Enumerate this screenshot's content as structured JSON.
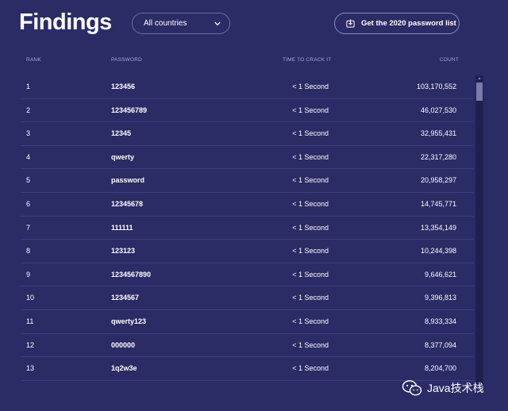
{
  "page": {
    "title": "Findings",
    "country_select": {
      "value": "All countries"
    },
    "download_button": {
      "label": "Get the 2020 password list"
    }
  },
  "table": {
    "headers": {
      "rank": "RANK",
      "password": "PASSWORD",
      "time": "TIME TO CRACK IT",
      "count": "COUNT"
    },
    "rows": [
      {
        "rank": "1",
        "password": "123456",
        "time": "< 1 Second",
        "count": "103,170,552"
      },
      {
        "rank": "2",
        "password": "123456789",
        "time": "< 1 Second",
        "count": "46,027,530"
      },
      {
        "rank": "3",
        "password": "12345",
        "time": "< 1 Second",
        "count": "32,955,431"
      },
      {
        "rank": "4",
        "password": "qwerty",
        "time": "< 1 Second",
        "count": "22,317,280"
      },
      {
        "rank": "5",
        "password": "password",
        "time": "< 1 Second",
        "count": "20,958,297"
      },
      {
        "rank": "6",
        "password": "12345678",
        "time": "< 1 Second",
        "count": "14,745,771"
      },
      {
        "rank": "7",
        "password": "111111",
        "time": "< 1 Second",
        "count": "13,354,149"
      },
      {
        "rank": "8",
        "password": "123123",
        "time": "< 1 Second",
        "count": "10,244,398"
      },
      {
        "rank": "9",
        "password": "1234567890",
        "time": "< 1 Second",
        "count": "9,646,621"
      },
      {
        "rank": "10",
        "password": "1234567",
        "time": "< 1 Second",
        "count": "9,396,813"
      },
      {
        "rank": "11",
        "password": "qwerty123",
        "time": "< 1 Second",
        "count": "8,933,334"
      },
      {
        "rank": "12",
        "password": "000000",
        "time": "< 1 Second",
        "count": "8,377,094"
      },
      {
        "rank": "13",
        "password": "1q2w3e",
        "time": "< 1 Second",
        "count": "8,204,700"
      }
    ]
  },
  "watermark": {
    "text": "Java技术栈"
  },
  "colors": {
    "background": "#2b2b66",
    "header_text": "#a9a9d6",
    "row_divider": "#3e3e82",
    "pill_border": "#6b6bb0"
  },
  "icons": {
    "select_chevron": "chevron-down-icon",
    "download": "download-icon",
    "watermark": "wechat-icon"
  }
}
